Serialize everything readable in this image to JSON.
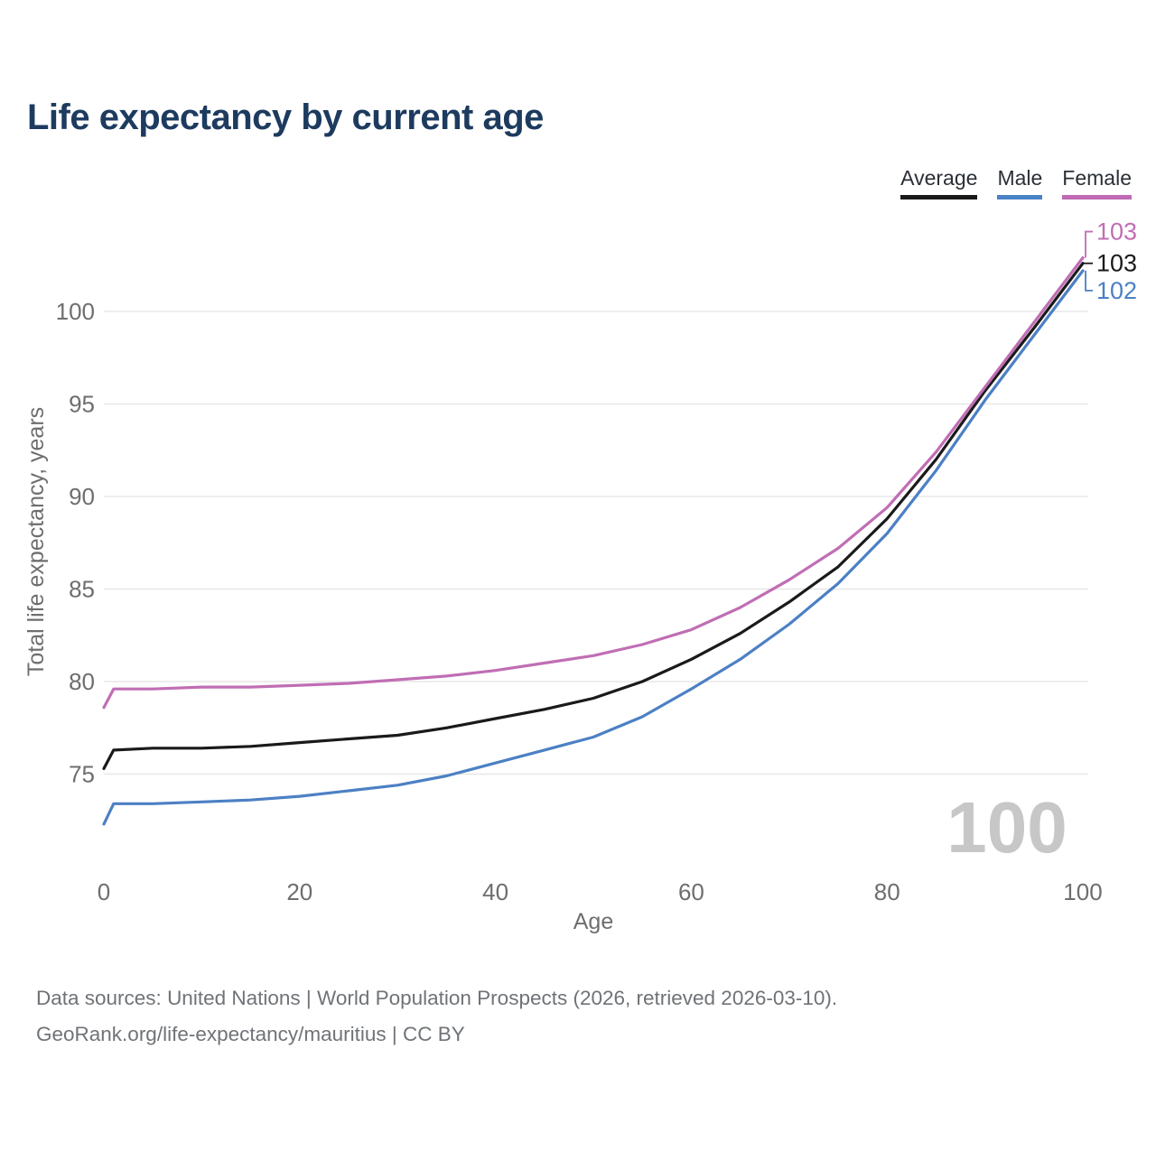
{
  "title": "Life expectancy by current age",
  "legend": {
    "items": [
      {
        "label": "Average",
        "color": "#1a1a1a"
      },
      {
        "label": "Male",
        "color": "#4a82c8"
      },
      {
        "label": "Female",
        "color": "#c06ab3"
      }
    ]
  },
  "hover_age_label": "100",
  "footer": {
    "line1": "Data sources: United Nations | World Population Prospects (2026, retrieved 2026-03-10).",
    "line2": "GeoRank.org/life-expectancy/mauritius | CC BY"
  },
  "colors": {
    "title": "#1d3b5f",
    "grid": "#e7e7e7",
    "tick_label": "#6e6e6e",
    "axis_title": "#6e6e6e",
    "watermark": "#c7c7c7",
    "average": "#1a1a1a",
    "male": "#4c80c4",
    "female": "#c06eb4"
  },
  "chart_data": {
    "type": "line",
    "title": "Life expectancy by current age",
    "xlabel": "Age",
    "ylabel": "Total life expectancy, years",
    "xlim": [
      0,
      100
    ],
    "ylim": [
      72,
      104.5
    ],
    "xticks": [
      0,
      20,
      40,
      60,
      80,
      100
    ],
    "yticks": [
      75,
      80,
      85,
      90,
      95,
      100
    ],
    "grid": "horizontal-only",
    "legend_position": "top-right",
    "x": [
      0,
      1,
      5,
      10,
      15,
      20,
      25,
      30,
      35,
      40,
      45,
      50,
      55,
      60,
      65,
      70,
      75,
      80,
      85,
      90,
      95,
      100
    ],
    "series": [
      {
        "name": "Average",
        "end_label": "103",
        "values": [
          75.3,
          76.3,
          76.4,
          76.4,
          76.5,
          76.7,
          76.9,
          77.1,
          77.5,
          78.0,
          78.5,
          79.1,
          80.0,
          81.2,
          82.6,
          84.3,
          86.2,
          88.8,
          92.0,
          95.7,
          99.1,
          102.6
        ]
      },
      {
        "name": "Male",
        "end_label": "102",
        "values": [
          72.3,
          73.4,
          73.4,
          73.5,
          73.6,
          73.8,
          74.1,
          74.4,
          74.9,
          75.6,
          76.3,
          77.0,
          78.1,
          79.6,
          81.2,
          83.1,
          85.3,
          88.0,
          91.4,
          95.2,
          98.7,
          102.2
        ]
      },
      {
        "name": "Female",
        "end_label": "103",
        "values": [
          78.6,
          79.6,
          79.6,
          79.7,
          79.7,
          79.8,
          79.9,
          80.1,
          80.3,
          80.6,
          81.0,
          81.4,
          82.0,
          82.8,
          84.0,
          85.5,
          87.2,
          89.4,
          92.4,
          95.9,
          99.4,
          102.9
        ]
      }
    ]
  }
}
